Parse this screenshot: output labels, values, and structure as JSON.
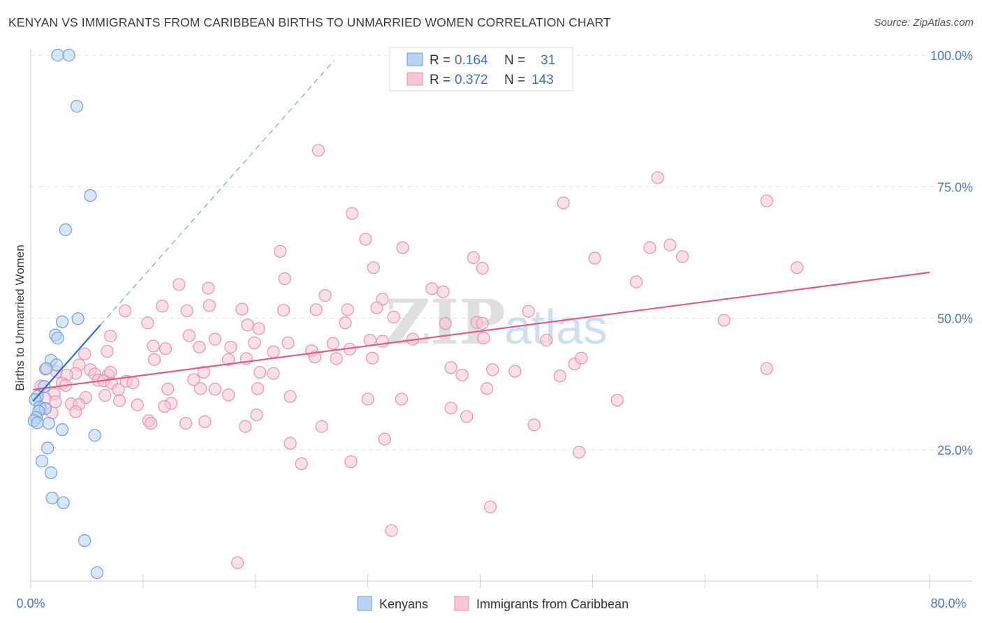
{
  "title": "KENYAN VS IMMIGRANTS FROM CARIBBEAN BIRTHS TO UNMARRIED WOMEN CORRELATION CHART",
  "source": "Source: ZipAtlas.com",
  "watermark": {
    "zip": "ZIP",
    "atlas": "atlas"
  },
  "colors": {
    "kenyan_fill": "#b8d3f3",
    "kenyan_stroke": "#6f9fdc",
    "kenyan_line": "#2f6fcf",
    "carib_fill": "#f8c5d5",
    "carib_stroke": "#e892ae",
    "carib_line": "#e05c8e",
    "grid": "#e2e2e2",
    "axis_text": "#4a79c6"
  },
  "chart_data": {
    "type": "scatter",
    "title": "KENYAN VS IMMIGRANTS FROM CARIBBEAN BIRTHS TO UNMARRIED WOMEN CORRELATION CHART",
    "xlabel": "",
    "ylabel": "Births to Unmarried Women",
    "xlim": [
      0,
      80
    ],
    "ylim": [
      0,
      105
    ],
    "x_tick_labels": [
      "0.0%",
      "80.0%"
    ],
    "y_ticks": [
      25,
      50,
      75,
      100
    ],
    "y_tick_labels": [
      "25.0%",
      "50.0%",
      "75.0%",
      "100.0%"
    ],
    "grid": true,
    "legend": {
      "placement": "top-center",
      "entries": [
        {
          "r_label": "R =",
          "r_value": "0.164",
          "n_label": "N =",
          "n_value": "31"
        },
        {
          "r_label": "R =",
          "r_value": "0.372",
          "n_label": "N =",
          "n_value": "143"
        }
      ]
    },
    "series": [
      {
        "name": "Kenyans",
        "points": [
          [
            2.4,
            100
          ],
          [
            3.4,
            100
          ],
          [
            4.1,
            90.3
          ],
          [
            5.3,
            73.3
          ],
          [
            3.1,
            66.8
          ],
          [
            4.2,
            49.9
          ],
          [
            2.8,
            49.3
          ],
          [
            2.2,
            46.8
          ],
          [
            2.4,
            46.2
          ],
          [
            1.8,
            42.0
          ],
          [
            2.3,
            41.1
          ],
          [
            1.4,
            40.4
          ],
          [
            1.2,
            37.0
          ],
          [
            0.6,
            35.1
          ],
          [
            0.4,
            34.5
          ],
          [
            0.8,
            33.1
          ],
          [
            1.3,
            32.8
          ],
          [
            0.7,
            32.3
          ],
          [
            0.5,
            31.1
          ],
          [
            0.3,
            30.5
          ],
          [
            0.6,
            30.1
          ],
          [
            1.6,
            30.0
          ],
          [
            2.8,
            28.8
          ],
          [
            5.7,
            27.7
          ],
          [
            1.5,
            25.3
          ],
          [
            1.0,
            22.8
          ],
          [
            1.8,
            20.6
          ],
          [
            1.9,
            15.8
          ],
          [
            2.9,
            14.9
          ],
          [
            4.8,
            7.7
          ],
          [
            5.9,
            1.6
          ]
        ],
        "trend": {
          "x": [
            0.2,
            6.2
          ],
          "y": [
            34.2,
            48.7
          ]
        },
        "trend_extended": {
          "x": [
            6.2,
            27.0
          ],
          "y": [
            48.7,
            99.0
          ]
        }
      },
      {
        "name": "Immigrants from Caribbean",
        "points": [
          [
            25.6,
            81.9
          ],
          [
            55.8,
            76.7
          ],
          [
            47.4,
            71.9
          ],
          [
            65.5,
            72.3
          ],
          [
            28.6,
            69.9
          ],
          [
            29.8,
            65.0
          ],
          [
            56.9,
            63.9
          ],
          [
            33.1,
            63.4
          ],
          [
            55.1,
            63.4
          ],
          [
            22.2,
            62.7
          ],
          [
            50.2,
            61.4
          ],
          [
            39.4,
            61.5
          ],
          [
            58.0,
            61.7
          ],
          [
            40.2,
            59.5
          ],
          [
            30.5,
            59.6
          ],
          [
            68.2,
            59.6
          ],
          [
            22.6,
            57.5
          ],
          [
            53.9,
            56.9
          ],
          [
            13.2,
            56.4
          ],
          [
            15.8,
            55.7
          ],
          [
            35.7,
            55.6
          ],
          [
            36.7,
            55.0
          ],
          [
            26.2,
            54.3
          ],
          [
            31.3,
            53.6
          ],
          [
            8.4,
            51.4
          ],
          [
            11.7,
            52.3
          ],
          [
            13.9,
            51.4
          ],
          [
            15.9,
            52.4
          ],
          [
            18.8,
            51.7
          ],
          [
            22.5,
            51.5
          ],
          [
            25.4,
            51.6
          ],
          [
            28.2,
            51.6
          ],
          [
            30.8,
            52.0
          ],
          [
            44.3,
            51.3
          ],
          [
            32.3,
            50.2
          ],
          [
            10.4,
            49.1
          ],
          [
            28.0,
            49.1
          ],
          [
            36.9,
            49.0
          ],
          [
            39.7,
            49.2
          ],
          [
            40.2,
            49.0
          ],
          [
            19.3,
            48.7
          ],
          [
            20.3,
            48.0
          ],
          [
            61.7,
            49.6
          ],
          [
            7.1,
            46.6
          ],
          [
            14.1,
            46.7
          ],
          [
            16.4,
            46.0
          ],
          [
            19.9,
            45.3
          ],
          [
            22.9,
            45.3
          ],
          [
            26.9,
            45.2
          ],
          [
            30.2,
            45.8
          ],
          [
            31.3,
            45.6
          ],
          [
            34.0,
            46.0
          ],
          [
            40.3,
            46.2
          ],
          [
            45.9,
            45.8
          ],
          [
            10.9,
            44.7
          ],
          [
            12.0,
            44.2
          ],
          [
            15.0,
            44.5
          ],
          [
            17.8,
            44.5
          ],
          [
            21.6,
            43.6
          ],
          [
            25.0,
            43.8
          ],
          [
            28.4,
            44.1
          ],
          [
            4.8,
            43.2
          ],
          [
            6.8,
            43.7
          ],
          [
            25.3,
            42.6
          ],
          [
            27.2,
            42.3
          ],
          [
            17.6,
            42.1
          ],
          [
            19.2,
            42.3
          ],
          [
            11.0,
            42.1
          ],
          [
            4.3,
            41.1
          ],
          [
            30.4,
            42.4
          ],
          [
            48.4,
            41.3
          ],
          [
            49.0,
            42.4
          ],
          [
            37.4,
            40.6
          ],
          [
            41.1,
            40.2
          ],
          [
            43.1,
            39.9
          ],
          [
            47.1,
            39.0
          ],
          [
            65.5,
            40.4
          ],
          [
            1.3,
            40.3
          ],
          [
            2.3,
            39.8
          ],
          [
            4.0,
            39.5
          ],
          [
            5.3,
            40.2
          ],
          [
            5.7,
            39.4
          ],
          [
            6.9,
            39.2
          ],
          [
            7.1,
            39.7
          ],
          [
            15.4,
            39.7
          ],
          [
            3.2,
            39.2
          ],
          [
            20.4,
            39.7
          ],
          [
            21.6,
            39.5
          ],
          [
            38.4,
            39.2
          ],
          [
            8.5,
            38.0
          ],
          [
            9.1,
            37.7
          ],
          [
            6.0,
            38.2
          ],
          [
            6.5,
            38.1
          ],
          [
            7.2,
            37.6
          ],
          [
            2.8,
            37.6
          ],
          [
            14.5,
            38.3
          ],
          [
            0.9,
            37.1
          ],
          [
            3.1,
            37.2
          ],
          [
            12.2,
            36.5
          ],
          [
            15.1,
            36.6
          ],
          [
            16.4,
            36.5
          ],
          [
            20.2,
            36.6
          ],
          [
            7.8,
            36.4
          ],
          [
            40.6,
            36.6
          ],
          [
            2.1,
            35.6
          ],
          [
            6.6,
            35.3
          ],
          [
            17.6,
            35.4
          ],
          [
            23.1,
            35.1
          ],
          [
            30.0,
            34.6
          ],
          [
            33.0,
            34.6
          ],
          [
            1.3,
            34.7
          ],
          [
            4.9,
            34.9
          ],
          [
            2.2,
            34.1
          ],
          [
            7.9,
            34.3
          ],
          [
            52.2,
            34.4
          ],
          [
            12.5,
            33.8
          ],
          [
            3.6,
            33.7
          ],
          [
            4.3,
            33.6
          ],
          [
            9.5,
            33.5
          ],
          [
            11.9,
            33.2
          ],
          [
            37.4,
            32.9
          ],
          [
            1.9,
            32.0
          ],
          [
            4.0,
            32.2
          ],
          [
            0.9,
            32.8
          ],
          [
            20.1,
            31.6
          ],
          [
            38.8,
            31.3
          ],
          [
            10.5,
            30.5
          ],
          [
            10.7,
            30.0
          ],
          [
            13.8,
            30.0
          ],
          [
            15.5,
            30.3
          ],
          [
            44.8,
            29.7
          ],
          [
            19.1,
            29.4
          ],
          [
            25.9,
            29.4
          ],
          [
            31.5,
            27.0
          ],
          [
            23.1,
            26.2
          ],
          [
            48.8,
            24.5
          ],
          [
            24.1,
            22.3
          ],
          [
            28.5,
            22.7
          ],
          [
            40.9,
            14.1
          ],
          [
            32.1,
            9.6
          ],
          [
            18.4,
            3.5
          ]
        ],
        "trend": {
          "x": [
            0.2,
            80.0
          ],
          "y": [
            36.4,
            58.7
          ]
        }
      }
    ]
  },
  "bottom_legend": [
    {
      "label": "Kenyans"
    },
    {
      "label": "Immigrants from Caribbean"
    }
  ]
}
